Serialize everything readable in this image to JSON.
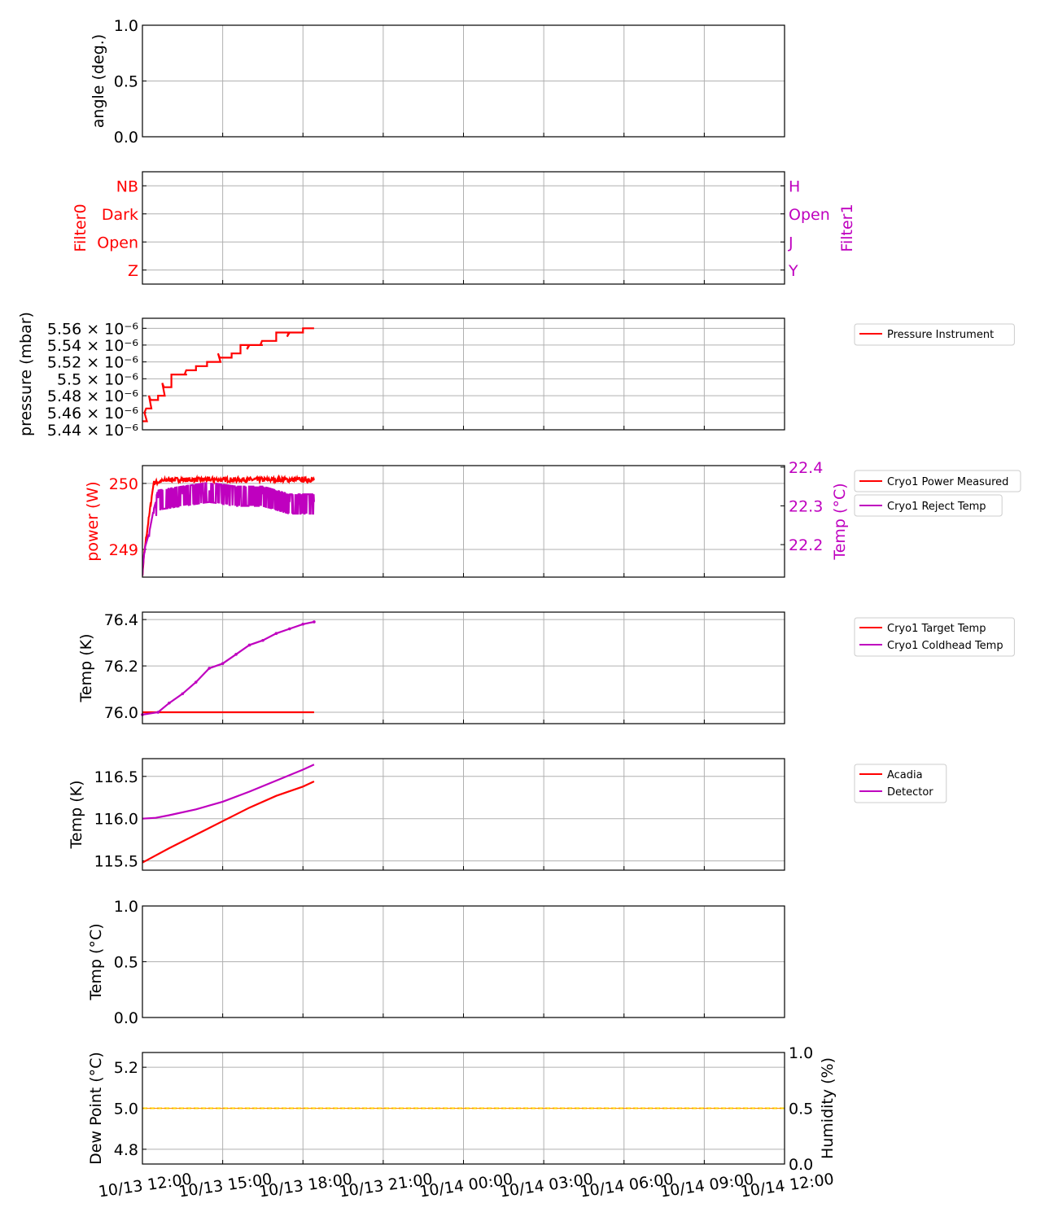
{
  "colors": {
    "red": "#ff0000",
    "magenta": "#bf00bf",
    "gold": "#ffd700",
    "grid": "#b0b0b0"
  },
  "chart_data": [
    {
      "type": "line",
      "ylabel": "angle (deg.)",
      "ylim": [
        0,
        1
      ],
      "yticks": [
        "0.0",
        "0.5",
        "1.0"
      ],
      "yticks_values": [
        0,
        0.5,
        1
      ],
      "grid": true,
      "series": []
    },
    {
      "type": "line",
      "ylabel": "Filter0",
      "ylabel_color": "red",
      "ylim": [
        -0.5,
        3.5
      ],
      "yticks": [
        "Z",
        "Open",
        "Dark",
        "NB"
      ],
      "yticks_values": [
        0,
        1,
        2,
        3
      ],
      "ylabel_right": "Filter1",
      "ylabel_right_color": "magenta",
      "yticks_right": [
        "Y",
        "J",
        "Open",
        "H"
      ],
      "yticks_right_values": [
        0,
        1,
        2,
        3
      ],
      "grid": true,
      "series": []
    },
    {
      "type": "line",
      "ylabel": "pressure (mbar)",
      "yscale": "log",
      "ylim": [
        5.44e-06,
        5.572e-06
      ],
      "yticks": [
        "5.44 × 10⁻⁶",
        "5.46 × 10⁻⁶",
        "5.48 × 10⁻⁶",
        "5.5 × 10⁻⁶",
        "5.52 × 10⁻⁶",
        "5.54 × 10⁻⁶",
        "5.56 × 10⁻⁶"
      ],
      "yticks_values": [
        5.44e-06,
        5.46e-06,
        5.48e-06,
        5.5e-06,
        5.52e-06,
        5.54e-06,
        5.56e-06
      ],
      "grid": true,
      "legend": "outside-right",
      "series": [
        {
          "name": "Pressure Instrument",
          "color": "red",
          "step": true,
          "x": [
            "10/13 12:00",
            "10/13 12:10",
            "10/13 12:20",
            "10/13 12:35",
            "10/13 12:50",
            "10/13 13:05",
            "10/13 13:20",
            "10/13 13:40",
            "10/13 14:00",
            "10/13 14:25",
            "10/13 14:55",
            "10/13 15:20",
            "10/13 15:40",
            "10/13 16:00",
            "10/13 16:30",
            "10/13 17:00",
            "10/13 17:30",
            "10/13 18:00",
            "10/13 18:25"
          ],
          "y": [
            5.45e-06,
            5.465e-06,
            5.475e-06,
            5.48e-06,
            5.49e-06,
            5.505e-06,
            5.505e-06,
            5.51e-06,
            5.515e-06,
            5.52e-06,
            5.525e-06,
            5.53e-06,
            5.54e-06,
            5.54e-06,
            5.545e-06,
            5.555e-06,
            5.555e-06,
            5.56e-06,
            5.56e-06
          ]
        }
      ]
    },
    {
      "type": "line",
      "ylabel": "power (W)",
      "ylabel_color": "red",
      "ylim": [
        248.58,
        250.27
      ],
      "yticks": [
        "249",
        "250"
      ],
      "yticks_values": [
        249,
        250
      ],
      "ylabel_right": "Temp (°C)",
      "ylabel_right_color": "magenta",
      "ylim_right": [
        22.116,
        22.404
      ],
      "yticks_right": [
        "22.2",
        "22.3",
        "22.4"
      ],
      "yticks_right_values": [
        22.2,
        22.3,
        22.4
      ],
      "grid": true,
      "legend": "outside-right",
      "series": [
        {
          "name": "Cryo1 Power Measured",
          "color": "red",
          "axis": "left",
          "x": [
            "10/13 12:00",
            "10/13 12:05",
            "10/13 12:15",
            "10/13 12:25",
            "10/13 13:00",
            "10/13 14:00",
            "10/13 15:00",
            "10/13 16:00",
            "10/13 17:00",
            "10/13 18:00",
            "10/13 18:25"
          ],
          "y": [
            248.6,
            249.0,
            249.5,
            250.0,
            250.05,
            250.05,
            250.05,
            250.05,
            250.05,
            250.05,
            250.05
          ]
        },
        {
          "name": "Cryo1 Reject Temp",
          "color": "magenta",
          "axis": "right",
          "x": [
            "10/13 12:00",
            "10/13 12:05",
            "10/13 12:15",
            "10/13 12:25",
            "10/13 12:35",
            "10/13 13:30",
            "10/13 14:30",
            "10/13 15:30",
            "10/13 16:30",
            "10/13 17:30",
            "10/13 18:25"
          ],
          "y": [
            22.12,
            22.18,
            22.22,
            22.28,
            22.32,
            22.33,
            22.34,
            22.33,
            22.33,
            22.31,
            22.31
          ]
        }
      ]
    },
    {
      "type": "line",
      "ylabel": "Temp (K)",
      "ylim": [
        75.951,
        76.432
      ],
      "yticks": [
        "76.0",
        "76.2",
        "76.4"
      ],
      "yticks_values": [
        76.0,
        76.2,
        76.4
      ],
      "grid": true,
      "legend": "outside-right",
      "series": [
        {
          "name": "Cryo1 Target Temp",
          "color": "red",
          "x": [
            "10/13 12:00",
            "10/13 18:25"
          ],
          "y": [
            76.0,
            76.0
          ]
        },
        {
          "name": "Cryo1 Coldhead Temp",
          "color": "magenta",
          "x": [
            "10/13 12:00",
            "10/13 12:35",
            "10/13 13:00",
            "10/13 13:30",
            "10/13 14:00",
            "10/13 14:30",
            "10/13 15:00",
            "10/13 15:30",
            "10/13 16:00",
            "10/13 16:30",
            "10/13 17:00",
            "10/13 17:30",
            "10/13 18:00",
            "10/13 18:25"
          ],
          "y": [
            75.99,
            76.0,
            76.04,
            76.08,
            76.13,
            76.19,
            76.21,
            76.25,
            76.29,
            76.31,
            76.34,
            76.36,
            76.38,
            76.39
          ]
        }
      ]
    },
    {
      "type": "line",
      "ylabel": "Temp (K)",
      "ylim": [
        115.39,
        116.71
      ],
      "yticks": [
        "115.5",
        "116.0",
        "116.5"
      ],
      "yticks_values": [
        115.5,
        116.0,
        116.5
      ],
      "grid": true,
      "legend": "outside-right",
      "series": [
        {
          "name": "Acadia",
          "color": "red",
          "x": [
            "10/13 12:00",
            "10/13 13:00",
            "10/13 14:00",
            "10/13 15:00",
            "10/13 16:00",
            "10/13 17:00",
            "10/13 18:00",
            "10/13 18:25"
          ],
          "y": [
            115.48,
            115.65,
            115.81,
            115.97,
            116.13,
            116.27,
            116.38,
            116.44
          ]
        },
        {
          "name": "Detector",
          "color": "magenta",
          "x": [
            "10/13 12:00",
            "10/13 12:30",
            "10/13 13:00",
            "10/13 14:00",
            "10/13 15:00",
            "10/13 16:00",
            "10/13 17:00",
            "10/13 18:00",
            "10/13 18:25"
          ],
          "y": [
            116.0,
            116.01,
            116.04,
            116.11,
            116.2,
            116.32,
            116.45,
            116.58,
            116.64
          ]
        }
      ]
    },
    {
      "type": "line",
      "ylabel": "Temp (°C)",
      "ylim": [
        0,
        1
      ],
      "yticks": [
        "0.0",
        "0.5",
        "1.0"
      ],
      "yticks_values": [
        0,
        0.5,
        1
      ],
      "grid": true,
      "series": []
    },
    {
      "type": "line",
      "ylabel": "Dew Point (°C)",
      "ylim": [
        4.728,
        5.272
      ],
      "yticks": [
        "4.8",
        "5.0",
        "5.2"
      ],
      "yticks_values": [
        4.8,
        5.0,
        5.2
      ],
      "ylabel_right": "Humidity (%)",
      "ylim_right": [
        0,
        1
      ],
      "yticks_right": [
        "0.0",
        "0.5",
        "1.0"
      ],
      "yticks_right_values": [
        0,
        0.5,
        1
      ],
      "grid": true,
      "xticks": [
        "10/13 12:00",
        "10/13 15:00",
        "10/13 18:00",
        "10/13 21:00",
        "10/14 00:00",
        "10/14 03:00",
        "10/14 06:00",
        "10/14 09:00",
        "10/14 12:00"
      ],
      "series": [
        {
          "color": "gold",
          "dashed": true,
          "x": [
            "10/13 12:00",
            "10/14 12:00"
          ],
          "y": [
            5.0,
            5.0
          ]
        }
      ]
    }
  ],
  "xlim": [
    "10/13 12:00",
    "10/14 12:00"
  ]
}
